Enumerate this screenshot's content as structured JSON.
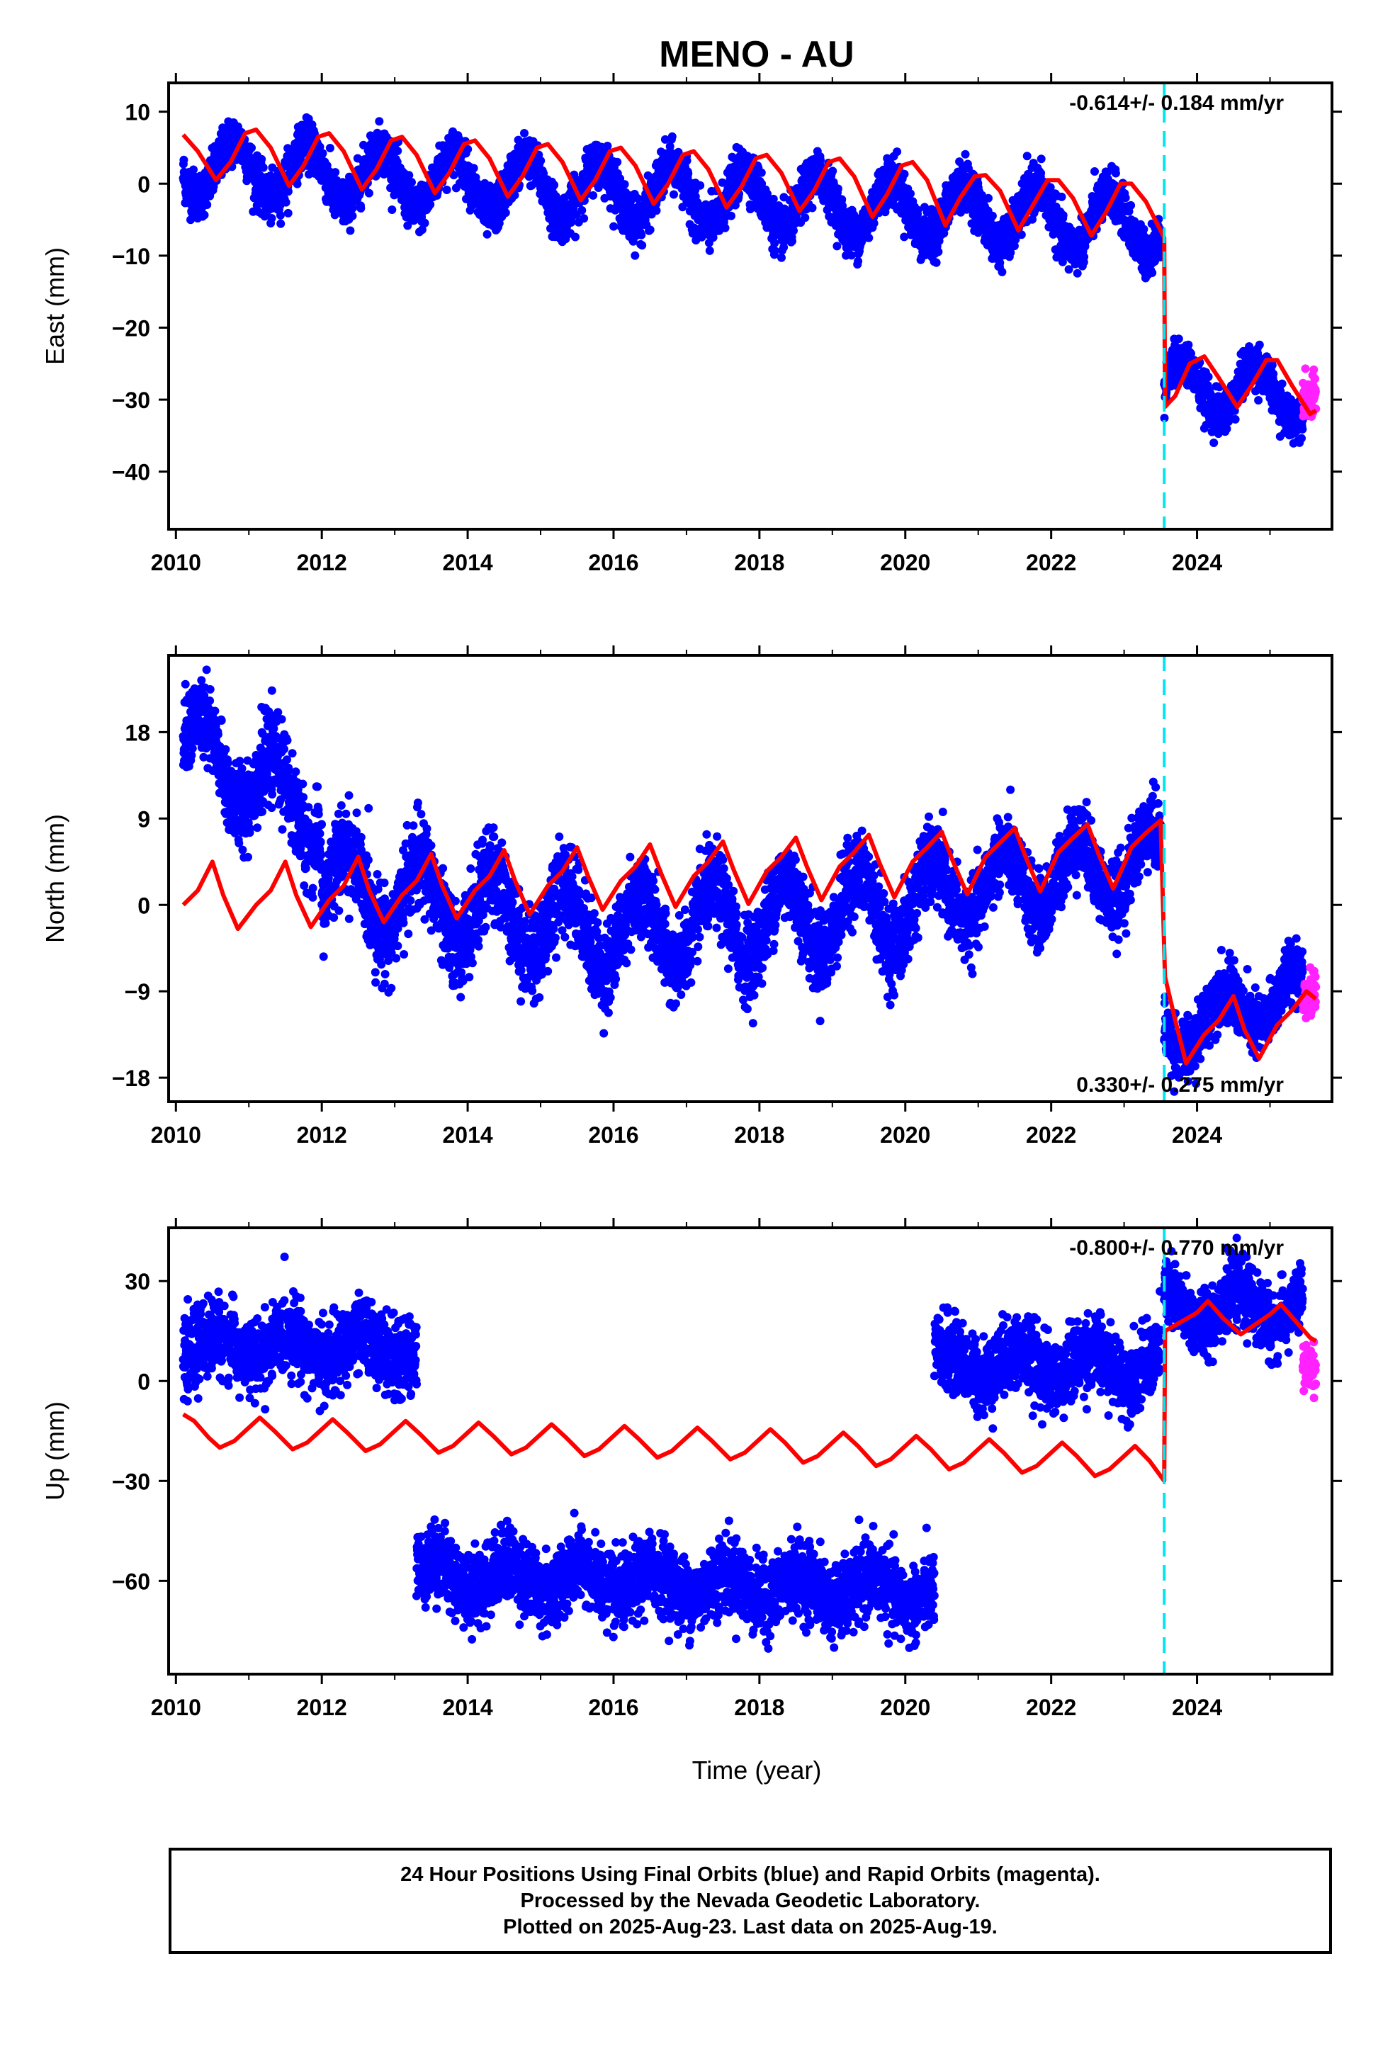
{
  "title": "MENO - AU",
  "colors": {
    "final": "#0000ff",
    "rapid": "#ff22ff",
    "model": "#ff0000",
    "event": "#00e5ee"
  },
  "x_tick_labels": [
    "2010",
    "2012",
    "2014",
    "2016",
    "2018",
    "2020",
    "2022",
    "2024"
  ],
  "x_axis_label": "Time (year)",
  "event_year": 2023.55,
  "footer": {
    "line1": "24 Hour Positions Using Final Orbits (blue) and Rapid Orbits (magenta).",
    "line2": "Processed by the Nevada Geodetic Laboratory.",
    "line3": "Plotted on 2025-Aug-23. Last data on 2025-Aug-19."
  },
  "chart_data": [
    {
      "type": "scatter",
      "ylabel": "East (mm)",
      "rate_text": "-0.614+/- 0.184 mm/yr",
      "xlim": [
        2009.9,
        2025.85
      ],
      "ylim": [
        -48,
        14
      ],
      "yticks": [
        10,
        0,
        -10,
        -20,
        -30,
        -40
      ],
      "ytick_labels": [
        "10",
        "0",
        "−10",
        "−20",
        "−30",
        "−40"
      ],
      "series": [
        {
          "name": "Final Orbits",
          "color": "#0000ff",
          "segments": [
            {
              "x0": 2010.1,
              "x1": 2023.5,
              "offset": 2.5,
              "trend": -0.614,
              "amp": 4.0,
              "phase": 0.55,
              "noise": 1.6
            },
            {
              "x0": 2023.55,
              "x1": 2025.45,
              "offset": -28.0,
              "trend": -0.614,
              "amp": 3.5,
              "phase": 0.55,
              "noise": 1.5
            }
          ]
        },
        {
          "name": "Rapid Orbits",
          "color": "#ff22ff",
          "segments": [
            {
              "x0": 2025.45,
              "x1": 2025.63,
              "offset": -29.5,
              "trend": 0,
              "amp": 0,
              "phase": 0,
              "noise": 1.4
            }
          ]
        }
      ],
      "model": [
        [
          2010.1,
          6.8
        ],
        [
          2010.3,
          4.5
        ],
        [
          2010.55,
          0.5
        ],
        [
          2010.75,
          3.0
        ],
        [
          2010.95,
          7.0
        ],
        [
          2011.1,
          7.5
        ],
        [
          2011.3,
          5.0
        ],
        [
          2011.55,
          -0.3
        ],
        [
          2011.75,
          2.5
        ],
        [
          2011.95,
          6.5
        ],
        [
          2012.1,
          7.0
        ],
        [
          2012.3,
          4.5
        ],
        [
          2012.55,
          -0.8
        ],
        [
          2012.75,
          2.0
        ],
        [
          2012.95,
          6.0
        ],
        [
          2013.1,
          6.5
        ],
        [
          2013.3,
          4.0
        ],
        [
          2013.55,
          -1.3
        ],
        [
          2013.75,
          1.5
        ],
        [
          2013.95,
          5.5
        ],
        [
          2014.1,
          6.0
        ],
        [
          2014.3,
          3.5
        ],
        [
          2014.55,
          -1.8
        ],
        [
          2014.75,
          1.0
        ],
        [
          2014.95,
          5.0
        ],
        [
          2015.1,
          5.5
        ],
        [
          2015.3,
          3.0
        ],
        [
          2015.55,
          -2.3
        ],
        [
          2015.75,
          0.5
        ],
        [
          2015.95,
          4.5
        ],
        [
          2016.1,
          5.0
        ],
        [
          2016.3,
          2.5
        ],
        [
          2016.55,
          -2.8
        ],
        [
          2016.75,
          0.0
        ],
        [
          2016.95,
          4.0
        ],
        [
          2017.1,
          4.5
        ],
        [
          2017.3,
          2.0
        ],
        [
          2017.55,
          -3.3
        ],
        [
          2017.75,
          -0.5
        ],
        [
          2017.95,
          3.5
        ],
        [
          2018.1,
          4.0
        ],
        [
          2018.3,
          1.5
        ],
        [
          2018.55,
          -3.8
        ],
        [
          2018.75,
          -1.0
        ],
        [
          2018.95,
          3.0
        ],
        [
          2019.1,
          3.5
        ],
        [
          2019.3,
          1.0
        ],
        [
          2019.55,
          -4.6
        ],
        [
          2019.75,
          -1.5
        ],
        [
          2019.95,
          2.5
        ],
        [
          2020.1,
          3.0
        ],
        [
          2020.3,
          0.5
        ],
        [
          2020.55,
          -5.8
        ],
        [
          2020.75,
          -2.0
        ],
        [
          2020.95,
          1.0
        ],
        [
          2021.1,
          1.2
        ],
        [
          2021.3,
          -1.0
        ],
        [
          2021.55,
          -6.5
        ],
        [
          2021.75,
          -3.0
        ],
        [
          2021.95,
          0.5
        ],
        [
          2022.1,
          0.5
        ],
        [
          2022.3,
          -2.0
        ],
        [
          2022.55,
          -7.2
        ],
        [
          2022.75,
          -4.0
        ],
        [
          2022.95,
          0.0
        ],
        [
          2023.1,
          0.0
        ],
        [
          2023.3,
          -2.5
        ],
        [
          2023.55,
          -7.5
        ],
        [
          2023.56,
          -31.0
        ],
        [
          2023.7,
          -29.5
        ],
        [
          2023.9,
          -25.0
        ],
        [
          2024.1,
          -24.0
        ],
        [
          2024.3,
          -27.0
        ],
        [
          2024.55,
          -31.0
        ],
        [
          2024.75,
          -28.0
        ],
        [
          2024.95,
          -24.5
        ],
        [
          2025.1,
          -24.5
        ],
        [
          2025.3,
          -28.0
        ],
        [
          2025.55,
          -32.0
        ],
        [
          2025.63,
          -31.5
        ]
      ]
    },
    {
      "type": "scatter",
      "ylabel": "North (mm)",
      "rate_text": "0.330+/- 0.275 mm/yr",
      "xlim": [
        2009.9,
        2025.85
      ],
      "ylim": [
        -20.5,
        26
      ],
      "yticks": [
        18,
        9,
        0,
        -9,
        -18
      ],
      "ytick_labels": [
        "18",
        "9",
        "0",
        "−9",
        "−18"
      ],
      "series": [
        {
          "name": "Final Orbits",
          "color": "#0000ff",
          "segments": [
            {
              "x0": 2010.1,
              "x1": 2012.0,
              "offset": 17.0,
              "trend": -4.2,
              "amp": 3.5,
              "phase": 0.1,
              "noise": 2.2
            },
            {
              "x0": 2012.0,
              "x1": 2016.0,
              "offset": 2.0,
              "trend": -1.2,
              "amp": 4.0,
              "phase": 0.1,
              "noise": 2.3
            },
            {
              "x0": 2016.0,
              "x1": 2020.4,
              "offset": -3.0,
              "trend": 0.7,
              "amp": 4.0,
              "phase": 0.1,
              "noise": 2.1
            },
            {
              "x0": 2020.4,
              "x1": 2023.5,
              "offset": 1.0,
              "trend": 1.2,
              "amp": 3.5,
              "phase": 0.1,
              "noise": 1.9
            },
            {
              "x0": 2023.55,
              "x1": 2025.45,
              "offset": -13.5,
              "trend": 2.5,
              "amp": 2.5,
              "phase": 0.1,
              "noise": 1.6
            }
          ]
        },
        {
          "name": "Rapid Orbits",
          "color": "#ff22ff",
          "segments": [
            {
              "x0": 2025.45,
              "x1": 2025.63,
              "offset": -9.5,
              "trend": 0,
              "amp": 0,
              "phase": 0,
              "noise": 1.0
            }
          ]
        }
      ],
      "model": [
        [
          2010.1,
          0.0
        ],
        [
          2010.3,
          1.5
        ],
        [
          2010.5,
          4.5
        ],
        [
          2010.65,
          1.0
        ],
        [
          2010.85,
          -2.5
        ],
        [
          2011.1,
          0.0
        ],
        [
          2011.3,
          1.5
        ],
        [
          2011.5,
          4.5
        ],
        [
          2011.65,
          1.0
        ],
        [
          2011.85,
          -2.3
        ],
        [
          2012.1,
          0.5
        ],
        [
          2012.3,
          2.0
        ],
        [
          2012.5,
          5.0
        ],
        [
          2012.65,
          1.5
        ],
        [
          2012.85,
          -1.8
        ],
        [
          2013.1,
          1.0
        ],
        [
          2013.3,
          2.5
        ],
        [
          2013.5,
          5.3
        ],
        [
          2013.65,
          2.0
        ],
        [
          2013.85,
          -1.4
        ],
        [
          2014.1,
          1.5
        ],
        [
          2014.3,
          3.0
        ],
        [
          2014.5,
          5.7
        ],
        [
          2014.65,
          2.5
        ],
        [
          2014.85,
          -1.0
        ],
        [
          2015.1,
          2.0
        ],
        [
          2015.3,
          3.5
        ],
        [
          2015.5,
          6.0
        ],
        [
          2015.65,
          3.0
        ],
        [
          2015.85,
          -0.5
        ],
        [
          2016.1,
          2.5
        ],
        [
          2016.3,
          4.0
        ],
        [
          2016.5,
          6.3
        ],
        [
          2016.65,
          3.3
        ],
        [
          2016.85,
          -0.2
        ],
        [
          2017.1,
          3.0
        ],
        [
          2017.3,
          4.5
        ],
        [
          2017.5,
          6.6
        ],
        [
          2017.65,
          3.6
        ],
        [
          2017.85,
          0.1
        ],
        [
          2018.1,
          3.5
        ],
        [
          2018.3,
          5.0
        ],
        [
          2018.5,
          7.0
        ],
        [
          2018.65,
          4.0
        ],
        [
          2018.85,
          0.5
        ],
        [
          2019.1,
          4.0
        ],
        [
          2019.3,
          5.5
        ],
        [
          2019.5,
          7.3
        ],
        [
          2019.65,
          4.3
        ],
        [
          2019.85,
          0.8
        ],
        [
          2020.1,
          4.5
        ],
        [
          2020.3,
          6.0
        ],
        [
          2020.5,
          7.6
        ],
        [
          2020.65,
          4.6
        ],
        [
          2020.85,
          1.1
        ],
        [
          2021.1,
          5.0
        ],
        [
          2021.3,
          6.5
        ],
        [
          2021.5,
          8.0
        ],
        [
          2021.65,
          5.0
        ],
        [
          2021.85,
          1.4
        ],
        [
          2022.1,
          5.5
        ],
        [
          2022.3,
          7.0
        ],
        [
          2022.5,
          8.4
        ],
        [
          2022.65,
          5.3
        ],
        [
          2022.85,
          1.7
        ],
        [
          2023.1,
          6.0
        ],
        [
          2023.3,
          7.5
        ],
        [
          2023.5,
          8.8
        ],
        [
          2023.56,
          -7.5
        ],
        [
          2023.7,
          -12.0
        ],
        [
          2023.85,
          -16.5
        ],
        [
          2024.1,
          -13.5
        ],
        [
          2024.3,
          -12.0
        ],
        [
          2024.5,
          -9.5
        ],
        [
          2024.65,
          -13.0
        ],
        [
          2024.85,
          -16.0
        ],
        [
          2025.1,
          -12.5
        ],
        [
          2025.3,
          -11.0
        ],
        [
          2025.5,
          -9.0
        ],
        [
          2025.63,
          -9.8
        ]
      ]
    },
    {
      "type": "scatter",
      "ylabel": "Up (mm)",
      "rate_text": "-0.800+/- 0.770 mm/yr",
      "xlim": [
        2009.9,
        2025.85
      ],
      "ylim": [
        -88,
        46
      ],
      "yticks": [
        30,
        0,
        -30,
        -60
      ],
      "ytick_labels": [
        "30",
        "0",
        "−30",
        "−60"
      ],
      "series": [
        {
          "name": "Final Orbits",
          "color": "#0000ff",
          "segments": [
            {
              "x0": 2010.1,
              "x1": 2013.3,
              "offset": 10.0,
              "trend": 0.0,
              "amp": 4.0,
              "phase": 0.3,
              "noise": 5.5
            },
            {
              "x0": 2013.3,
              "x1": 2020.4,
              "offset": -58.0,
              "trend": -0.8,
              "amp": 4.0,
              "phase": 0.3,
              "noise": 5.5
            },
            {
              "x0": 2020.4,
              "x1": 2023.5,
              "offset": 5.0,
              "trend": 0.0,
              "amp": 4.0,
              "phase": 0.3,
              "noise": 5.5
            },
            {
              "x0": 2023.55,
              "x1": 2025.45,
              "offset": 22.0,
              "trend": 0.0,
              "amp": 5.0,
              "phase": 0.3,
              "noise": 5.0
            }
          ]
        },
        {
          "name": "Rapid Orbits",
          "color": "#ff22ff",
          "segments": [
            {
              "x0": 2025.45,
              "x1": 2025.63,
              "offset": 4.0,
              "trend": 0,
              "amp": 0,
              "phase": 0,
              "noise": 3.0
            }
          ]
        }
      ],
      "model": [
        [
          2010.1,
          -10.0
        ],
        [
          2010.25,
          -12.0
        ],
        [
          2010.45,
          -17.0
        ],
        [
          2010.6,
          -20.0
        ],
        [
          2010.8,
          -18.0
        ],
        [
          2011.0,
          -14.0
        ],
        [
          2011.15,
          -11.0
        ],
        [
          2011.35,
          -15.0
        ],
        [
          2011.6,
          -20.5
        ],
        [
          2011.8,
          -18.5
        ],
        [
          2012.0,
          -14.5
        ],
        [
          2012.15,
          -11.5
        ],
        [
          2012.35,
          -15.5
        ],
        [
          2012.6,
          -21.0
        ],
        [
          2012.8,
          -19.0
        ],
        [
          2013.0,
          -15.0
        ],
        [
          2013.15,
          -12.0
        ],
        [
          2013.35,
          -16.0
        ],
        [
          2013.6,
          -21.5
        ],
        [
          2013.8,
          -19.5
        ],
        [
          2014.0,
          -15.5
        ],
        [
          2014.15,
          -12.5
        ],
        [
          2014.35,
          -16.5
        ],
        [
          2014.6,
          -22.0
        ],
        [
          2014.8,
          -20.0
        ],
        [
          2015.0,
          -16.0
        ],
        [
          2015.15,
          -13.0
        ],
        [
          2015.35,
          -17.0
        ],
        [
          2015.6,
          -22.5
        ],
        [
          2015.8,
          -20.5
        ],
        [
          2016.0,
          -16.5
        ],
        [
          2016.15,
          -13.5
        ],
        [
          2016.35,
          -17.5
        ],
        [
          2016.6,
          -23.0
        ],
        [
          2016.8,
          -21.0
        ],
        [
          2017.0,
          -17.0
        ],
        [
          2017.15,
          -14.0
        ],
        [
          2017.35,
          -18.0
        ],
        [
          2017.6,
          -23.5
        ],
        [
          2017.8,
          -21.5
        ],
        [
          2018.0,
          -17.5
        ],
        [
          2018.15,
          -14.5
        ],
        [
          2018.35,
          -18.5
        ],
        [
          2018.6,
          -24.5
        ],
        [
          2018.8,
          -22.5
        ],
        [
          2019.0,
          -18.5
        ],
        [
          2019.15,
          -15.5
        ],
        [
          2019.35,
          -19.5
        ],
        [
          2019.6,
          -25.5
        ],
        [
          2019.8,
          -23.5
        ],
        [
          2020.0,
          -19.5
        ],
        [
          2020.15,
          -16.5
        ],
        [
          2020.35,
          -20.5
        ],
        [
          2020.6,
          -26.5
        ],
        [
          2020.8,
          -24.5
        ],
        [
          2021.0,
          -20.5
        ],
        [
          2021.15,
          -17.5
        ],
        [
          2021.35,
          -21.5
        ],
        [
          2021.6,
          -27.5
        ],
        [
          2021.8,
          -25.5
        ],
        [
          2022.0,
          -21.5
        ],
        [
          2022.15,
          -18.5
        ],
        [
          2022.35,
          -22.5
        ],
        [
          2022.6,
          -28.5
        ],
        [
          2022.8,
          -26.5
        ],
        [
          2023.0,
          -22.5
        ],
        [
          2023.15,
          -19.5
        ],
        [
          2023.35,
          -24.0
        ],
        [
          2023.55,
          -30.0
        ],
        [
          2023.56,
          15.0
        ],
        [
          2023.8,
          18.0
        ],
        [
          2024.0,
          20.5
        ],
        [
          2024.15,
          24.0
        ],
        [
          2024.35,
          19.0
        ],
        [
          2024.6,
          14.0
        ],
        [
          2024.8,
          17.0
        ],
        [
          2025.0,
          20.0
        ],
        [
          2025.15,
          23.0
        ],
        [
          2025.35,
          18.0
        ],
        [
          2025.55,
          13.0
        ],
        [
          2025.63,
          12.0
        ]
      ]
    }
  ]
}
